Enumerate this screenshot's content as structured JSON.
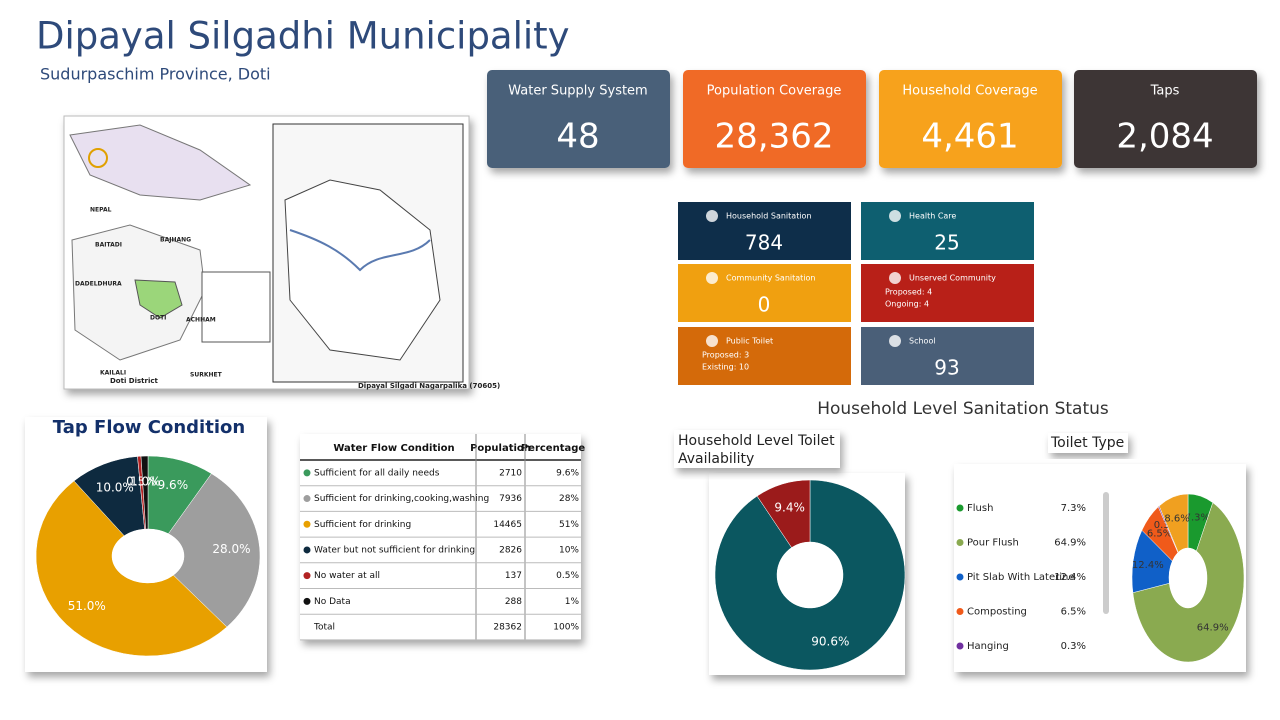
{
  "header": {
    "title": "Dipayal Silgadhi Municipality",
    "subtitle": "Sudurpaschim Province, Doti"
  },
  "kpis": [
    {
      "label": "Water Supply System",
      "value": "48",
      "color": "#4a6079"
    },
    {
      "label": "Population Coverage",
      "value": "28,362",
      "color": "#f06a28"
    },
    {
      "label": "Household Coverage",
      "value": "4,461",
      "color": "#f7a21b"
    },
    {
      "label": "Taps",
      "value": "2,084",
      "color": "#3d3535"
    }
  ],
  "tiles": [
    {
      "label": "Household Sanitation",
      "value": "784",
      "color": "#0e2e4a"
    },
    {
      "label": "Health Care",
      "value": "25",
      "color": "#0e5f70"
    },
    {
      "label": "Community Sanitation",
      "value": "0",
      "color": "#f0a010"
    },
    {
      "label": "Unserved Community",
      "details": [
        "Proposed: 4",
        "Ongoing: 4"
      ],
      "color": "#b82018"
    },
    {
      "label": "Public Toilet",
      "details": [
        "Proposed: 3",
        "Existing: 10"
      ],
      "color": "#d46a0a"
    },
    {
      "label": "School",
      "value": "93",
      "color": "#4a5f78"
    }
  ],
  "map": {
    "labels": [
      "NEPAL",
      "BAITADI",
      "BAJHANG",
      "DADELDHURA",
      "DOTI",
      "ACHHAM",
      "KAILALI",
      "SURKHET",
      "Doti District",
      "Dipayal Silgadi Nagarpalika (70605)"
    ]
  },
  "table": {
    "columns": [
      "Water Flow Condition",
      "Population",
      "Percentage"
    ],
    "rows": [
      [
        "Sufficient for all daily needs",
        "2710",
        "9.6%"
      ],
      [
        "Sufficient for drinking,cooking,washing",
        "7936",
        "28%"
      ],
      [
        "Sufficient for drinking",
        "14465",
        "51%"
      ],
      [
        "Water but not sufficient for drinking",
        "2826",
        "10%"
      ],
      [
        "No water at all",
        "137",
        "0.5%"
      ],
      [
        "No Data",
        "288",
        "1%"
      ],
      [
        "Total",
        "28362",
        "100%"
      ]
    ],
    "dot_colors": [
      "#3a9a5c",
      "#9e9e9e",
      "#e8a000",
      "#0e2a3f",
      "#b22222",
      "#111111",
      null
    ]
  },
  "section_title": "Household Level Sanitation Status",
  "chart_data": [
    {
      "type": "pie",
      "title": "Tap Flow Condition",
      "categories": [
        "Sufficient for all daily needs",
        "Sufficient for drinking,cooking,washing",
        "Sufficient for drinking",
        "Water but not sufficient for drinking",
        "No water at all",
        "No Data"
      ],
      "values": [
        9.6,
        28.0,
        51.0,
        10.0,
        0.5,
        1.0
      ],
      "value_labels": [
        "9.6%",
        "28.0%",
        "51.0%",
        "10.0%",
        "0.5%",
        "1.0%"
      ],
      "colors": [
        "#3a9a5c",
        "#9e9e9e",
        "#e8a000",
        "#0e2a3f",
        "#b22222",
        "#111111"
      ]
    },
    {
      "type": "pie",
      "title": "Household Level Toilet Availability",
      "categories": [
        null,
        null
      ],
      "values": [
        90.6,
        9.4
      ],
      "value_labels": [
        "90.6%",
        "9.4%"
      ],
      "colors": [
        "#0b5760",
        "#9b1b1b"
      ]
    },
    {
      "type": "pie",
      "title": "Toilet Type",
      "categories": [
        "Flush",
        "Pour Flush",
        "Pit Slab With Laterine",
        "Composting",
        "Hanging",
        null
      ],
      "values": [
        7.3,
        64.9,
        12.4,
        6.5,
        0.3,
        8.6
      ],
      "value_labels": [
        "7.3%",
        "64.9%",
        "12.4%",
        "6.5%",
        "0.3%",
        "8.6%"
      ],
      "colors": [
        "#1a9a2e",
        "#8aaa50",
        "#1060c8",
        "#f05a1a",
        "#7030a0",
        "#f0a020"
      ]
    }
  ]
}
